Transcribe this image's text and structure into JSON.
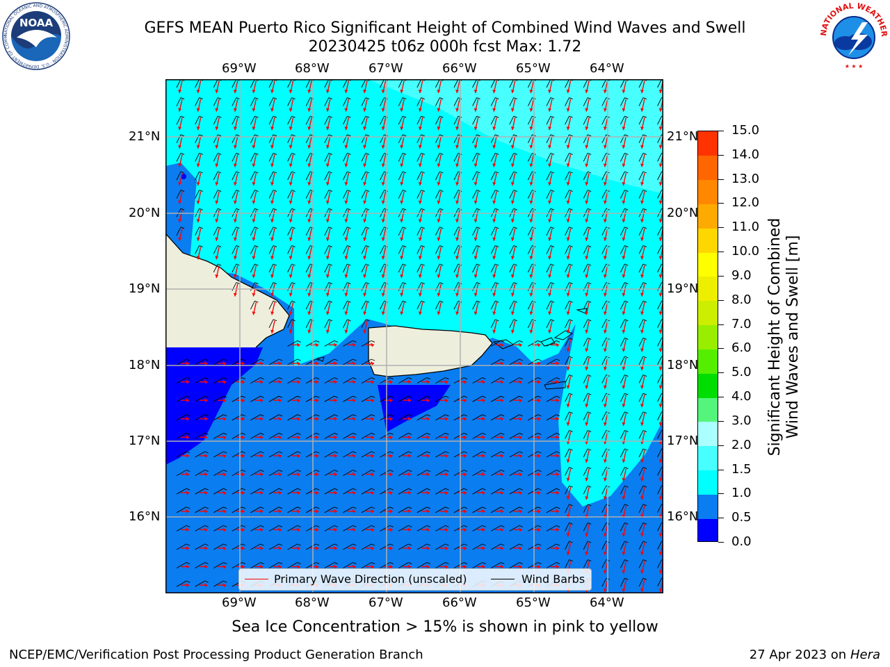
{
  "header": {
    "title_line1": "GEFS MEAN Puerto Rico Significant Height of Combined Wind Waves and Swell",
    "title_line2": "20230425 t06z 000h fcst   Max: 1.72"
  },
  "logos": {
    "noaa_text": "NOAA",
    "noaa_ring": "NATIONAL OCEANIC AND ATMOSPHERIC ADMINISTRATION · U.S. DEPARTMENT OF COMMERCE",
    "nws_ring": "NATIONAL WEATHER SERVICE"
  },
  "map": {
    "lon_labels": [
      "69°W",
      "68°W",
      "67°W",
      "66°W",
      "65°W",
      "64°W"
    ],
    "lat_labels": [
      "21°N",
      "20°N",
      "19°N",
      "18°N",
      "17°N",
      "16°N"
    ],
    "legend": {
      "wave_label": "Primary Wave Direction (unscaled)",
      "wind_label": "Wind Barbs",
      "wave_color": "#ff0000",
      "wind_color": "#000000"
    },
    "colors": {
      "land": "#eeeedd",
      "h0_05": "#0000ff",
      "h05_10": "#0a7df0",
      "h10_15": "#00ffff",
      "h15_20": "#48ffff",
      "h20_30": "#aaffff"
    }
  },
  "colorbar": {
    "labels": [
      "15.0",
      "14.0",
      "13.0",
      "12.0",
      "11.0",
      "10.0",
      "9.0",
      "8.0",
      "7.0",
      "6.0",
      "5.0",
      "4.0",
      "3.0",
      "2.0",
      "1.5",
      "1.0",
      "0.5",
      "0.0"
    ],
    "colors": [
      "#0000ff",
      "#0a7df0",
      "#00ffff",
      "#48ffff",
      "#aaffff",
      "#55f57c",
      "#00dd00",
      "#55ee00",
      "#99ee00",
      "#ccee00",
      "#eeee00",
      "#ffff00",
      "#ffd700",
      "#ffaa00",
      "#ff8800",
      "#ff6600",
      "#ff3300",
      "#ff0000"
    ],
    "title_line1": "Significant Height of Combined",
    "title_line2": "Wind Waves and Swell [m]"
  },
  "footer": {
    "ice_note": "Sea Ice Concentration > 15% is shown in pink to yellow",
    "left": "NCEP/EMC/Verification Post Processing Product Generation Branch",
    "right_date": "27 Apr 2023 on",
    "right_host": "Hera"
  }
}
